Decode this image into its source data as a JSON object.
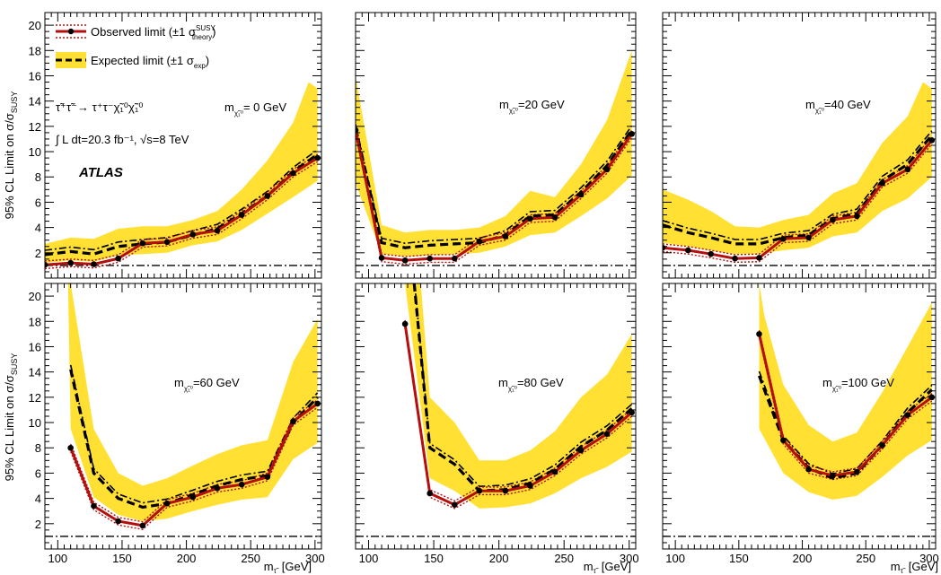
{
  "chart_data": {
    "type": "line",
    "ylabel": "95% CL Limit on σ/σ",
    "ylabel_sub": "SUSY",
    "xlabel": "m",
    "xlabel_unit": "[GeV]",
    "xlim": [
      90,
      305
    ],
    "ylim": [
      0,
      21
    ],
    "xticks": [
      "100",
      "150",
      "200",
      "250",
      "300"
    ],
    "yticks": [
      "2",
      "4",
      "6",
      "8",
      "10",
      "12",
      "14",
      "16",
      "18",
      "20"
    ],
    "reference_line": 1.0,
    "colors": {
      "band": "#FFE033",
      "observed": "#B40F0F",
      "expected": "#000000",
      "reference": "#000000"
    },
    "legend": {
      "observed": "Observed limit (±1 σ",
      "observed_sup": "SUSY",
      "observed_sub": "theory",
      "observed_end": ")",
      "expected": "Expected limit (±1 σ",
      "expected_sub": "exp",
      "expected_end": ")"
    },
    "annotations": {
      "process": "τ̃⁺τ̃⁻→ τ⁺τ⁻χ̃₁⁰χ̃₁⁰",
      "luminosity": "∫ L dt=20.3 fb⁻¹,  √s=8 TeV",
      "experiment": "ATLAS"
    },
    "panels": [
      {
        "label": "m",
        "label_value": "= 0 GeV",
        "observed": [
          [
            90,
            1.05
          ],
          [
            110,
            1.2
          ],
          [
            128,
            1.1
          ],
          [
            147,
            1.55
          ],
          [
            166,
            2.75
          ],
          [
            185,
            2.85
          ],
          [
            205,
            3.45
          ],
          [
            224,
            3.75
          ],
          [
            243,
            5.0
          ],
          [
            263,
            6.5
          ],
          [
            283,
            8.3
          ],
          [
            302,
            9.5
          ]
        ],
        "expected": [
          [
            90,
            1.85
          ],
          [
            110,
            2.1
          ],
          [
            128,
            1.9
          ],
          [
            147,
            2.5
          ],
          [
            166,
            2.7
          ],
          [
            185,
            2.85
          ],
          [
            205,
            3.4
          ],
          [
            224,
            3.9
          ],
          [
            243,
            5.1
          ],
          [
            263,
            6.5
          ],
          [
            283,
            8.4
          ],
          [
            302,
            9.8
          ]
        ],
        "band_upper": [
          [
            90,
            2.7
          ],
          [
            110,
            3.2
          ],
          [
            128,
            3.1
          ],
          [
            147,
            3.9
          ],
          [
            166,
            4.1
          ],
          [
            185,
            4.1
          ],
          [
            205,
            4.6
          ],
          [
            224,
            5.3
          ],
          [
            243,
            7.0
          ],
          [
            263,
            9.3
          ],
          [
            283,
            12.3
          ],
          [
            295,
            15.5
          ],
          [
            302,
            15.0
          ]
        ],
        "band_lower": [
          [
            90,
            1.2
          ],
          [
            110,
            1.4
          ],
          [
            128,
            1.3
          ],
          [
            147,
            1.8
          ],
          [
            166,
            1.9
          ],
          [
            185,
            2.0
          ],
          [
            205,
            2.6
          ],
          [
            224,
            2.9
          ],
          [
            243,
            3.8
          ],
          [
            263,
            5.1
          ],
          [
            283,
            6.4
          ],
          [
            302,
            7.7
          ]
        ]
      },
      {
        "label": "m",
        "label_value": "=20 GeV",
        "observed": [
          [
            90,
            11.7
          ],
          [
            110,
            1.6
          ],
          [
            128,
            1.4
          ],
          [
            147,
            1.55
          ],
          [
            166,
            1.55
          ],
          [
            185,
            2.9
          ],
          [
            205,
            3.3
          ],
          [
            224,
            4.7
          ],
          [
            243,
            4.8
          ],
          [
            263,
            6.6
          ],
          [
            283,
            8.6
          ],
          [
            302,
            11.4
          ]
        ],
        "expected": [
          [
            90,
            11.8
          ],
          [
            110,
            2.8
          ],
          [
            128,
            2.4
          ],
          [
            147,
            2.6
          ],
          [
            166,
            2.7
          ],
          [
            185,
            2.8
          ],
          [
            205,
            3.4
          ],
          [
            224,
            4.9
          ],
          [
            243,
            5.0
          ],
          [
            263,
            6.8
          ],
          [
            283,
            8.9
          ],
          [
            302,
            11.7
          ]
        ],
        "band_upper": [
          [
            90,
            16.0
          ],
          [
            110,
            4.2
          ],
          [
            128,
            3.6
          ],
          [
            147,
            3.8
          ],
          [
            166,
            3.8
          ],
          [
            185,
            4.0
          ],
          [
            205,
            4.9
          ],
          [
            224,
            6.9
          ],
          [
            243,
            6.4
          ],
          [
            263,
            9.0
          ],
          [
            283,
            12.5
          ],
          [
            302,
            18.0
          ]
        ],
        "band_lower": [
          [
            90,
            7.5
          ],
          [
            110,
            1.9
          ],
          [
            128,
            1.7
          ],
          [
            147,
            1.8
          ],
          [
            166,
            1.9
          ],
          [
            185,
            2.0
          ],
          [
            205,
            2.5
          ],
          [
            224,
            3.4
          ],
          [
            243,
            3.6
          ],
          [
            263,
            4.9
          ],
          [
            283,
            6.3
          ],
          [
            302,
            8.1
          ]
        ]
      },
      {
        "label": "m",
        "label_value": "=40 GeV",
        "observed": [
          [
            90,
            2.4
          ],
          [
            110,
            2.2
          ],
          [
            128,
            1.9
          ],
          [
            147,
            1.55
          ],
          [
            166,
            1.6
          ],
          [
            185,
            3.1
          ],
          [
            205,
            3.2
          ],
          [
            224,
            4.6
          ],
          [
            243,
            4.9
          ],
          [
            263,
            7.5
          ],
          [
            283,
            8.6
          ],
          [
            302,
            10.9
          ]
        ],
        "expected": [
          [
            90,
            4.2
          ],
          [
            110,
            3.6
          ],
          [
            128,
            3.2
          ],
          [
            147,
            2.7
          ],
          [
            166,
            2.7
          ],
          [
            185,
            3.2
          ],
          [
            205,
            3.4
          ],
          [
            224,
            4.7
          ],
          [
            243,
            5.1
          ],
          [
            263,
            7.7
          ],
          [
            283,
            9.0
          ],
          [
            302,
            11.3
          ]
        ],
        "band_upper": [
          [
            90,
            7.0
          ],
          [
            110,
            6.2
          ],
          [
            128,
            5.3
          ],
          [
            147,
            4.1
          ],
          [
            166,
            4.0
          ],
          [
            185,
            4.6
          ],
          [
            205,
            5.0
          ],
          [
            224,
            6.7
          ],
          [
            243,
            7.5
          ],
          [
            263,
            10.7
          ],
          [
            283,
            12.8
          ],
          [
            295,
            15.5
          ],
          [
            302,
            15.0
          ]
        ],
        "band_lower": [
          [
            90,
            2.8
          ],
          [
            110,
            2.5
          ],
          [
            128,
            2.2
          ],
          [
            147,
            1.9
          ],
          [
            166,
            1.9
          ],
          [
            185,
            2.2
          ],
          [
            205,
            2.4
          ],
          [
            224,
            3.3
          ],
          [
            243,
            3.6
          ],
          [
            263,
            5.3
          ],
          [
            283,
            6.3
          ],
          [
            302,
            8.0
          ]
        ]
      },
      {
        "label": "m",
        "label_value": "=60 GeV",
        "observed": [
          [
            110,
            8.0
          ],
          [
            128,
            3.4
          ],
          [
            147,
            2.2
          ],
          [
            166,
            1.85
          ],
          [
            185,
            3.6
          ],
          [
            205,
            4.1
          ],
          [
            224,
            4.8
          ],
          [
            243,
            5.1
          ],
          [
            263,
            5.7
          ],
          [
            283,
            10.1
          ],
          [
            302,
            11.5
          ]
        ],
        "expected": [
          [
            110,
            14.2
          ],
          [
            128,
            6.0
          ],
          [
            147,
            4.0
          ],
          [
            166,
            3.3
          ],
          [
            185,
            3.6
          ],
          [
            205,
            4.3
          ],
          [
            224,
            5.0
          ],
          [
            243,
            5.5
          ],
          [
            263,
            5.8
          ],
          [
            283,
            10.0
          ],
          [
            302,
            12.0
          ]
        ],
        "band_upper": [
          [
            108,
            21.0
          ],
          [
            110,
            21.0
          ],
          [
            128,
            9.5
          ],
          [
            147,
            6.0
          ],
          [
            166,
            5.0
          ],
          [
            185,
            5.6
          ],
          [
            205,
            6.6
          ],
          [
            224,
            7.5
          ],
          [
            243,
            8.2
          ],
          [
            263,
            8.6
          ],
          [
            283,
            14.8
          ],
          [
            302,
            18.2
          ]
        ],
        "band_lower": [
          [
            110,
            9.5
          ],
          [
            128,
            4.1
          ],
          [
            147,
            2.7
          ],
          [
            166,
            2.2
          ],
          [
            185,
            2.4
          ],
          [
            205,
            3.0
          ],
          [
            224,
            3.5
          ],
          [
            243,
            3.9
          ],
          [
            263,
            4.1
          ],
          [
            283,
            7.1
          ],
          [
            302,
            8.4
          ]
        ]
      },
      {
        "label": "m",
        "label_value": "=80 GeV",
        "observed": [
          [
            128,
            17.8
          ],
          [
            147,
            4.4
          ],
          [
            166,
            3.5
          ],
          [
            185,
            4.6
          ],
          [
            205,
            4.6
          ],
          [
            224,
            5.0
          ],
          [
            243,
            6.1
          ],
          [
            263,
            7.8
          ],
          [
            283,
            9.1
          ],
          [
            302,
            10.8
          ]
        ],
        "expected": [
          [
            135,
            21.0
          ],
          [
            147,
            8.0
          ],
          [
            166,
            6.7
          ],
          [
            185,
            4.6
          ],
          [
            205,
            4.7
          ],
          [
            224,
            5.2
          ],
          [
            243,
            6.3
          ],
          [
            263,
            8.1
          ],
          [
            283,
            9.4
          ],
          [
            302,
            11.1
          ]
        ],
        "band_upper": [
          [
            128,
            21.0
          ],
          [
            140,
            21.0
          ],
          [
            147,
            12.0
          ],
          [
            166,
            10.0
          ],
          [
            185,
            7.0
          ],
          [
            205,
            7.0
          ],
          [
            224,
            7.8
          ],
          [
            243,
            9.3
          ],
          [
            263,
            12.0
          ],
          [
            283,
            13.8
          ],
          [
            302,
            17.0
          ]
        ],
        "band_lower": [
          [
            128,
            21.0
          ],
          [
            147,
            5.6
          ],
          [
            166,
            4.6
          ],
          [
            185,
            3.2
          ],
          [
            205,
            3.3
          ],
          [
            224,
            3.6
          ],
          [
            243,
            4.4
          ],
          [
            263,
            5.6
          ],
          [
            283,
            6.5
          ],
          [
            302,
            7.7
          ]
        ]
      },
      {
        "label": "m",
        "label_value": "=100 GeV",
        "observed": [
          [
            166,
            17.0
          ],
          [
            185,
            8.6
          ],
          [
            205,
            6.3
          ],
          [
            224,
            5.8
          ],
          [
            243,
            6.1
          ],
          [
            263,
            8.2
          ],
          [
            283,
            10.6
          ],
          [
            302,
            12.0
          ]
        ],
        "expected": [
          [
            166,
            13.7
          ],
          [
            185,
            8.6
          ],
          [
            205,
            6.4
          ],
          [
            224,
            5.6
          ],
          [
            243,
            6.0
          ],
          [
            263,
            8.2
          ],
          [
            283,
            10.8
          ],
          [
            302,
            12.6
          ]
        ],
        "band_upper": [
          [
            166,
            21.0
          ],
          [
            170,
            18.5
          ],
          [
            185,
            13.0
          ],
          [
            205,
            9.8
          ],
          [
            224,
            8.5
          ],
          [
            243,
            9.2
          ],
          [
            263,
            12.4
          ],
          [
            283,
            16.0
          ],
          [
            302,
            19.5
          ]
        ],
        "band_lower": [
          [
            166,
            9.5
          ],
          [
            185,
            6.0
          ],
          [
            205,
            4.5
          ],
          [
            224,
            3.9
          ],
          [
            243,
            4.2
          ],
          [
            263,
            5.7
          ],
          [
            283,
            7.4
          ],
          [
            302,
            8.6
          ]
        ]
      }
    ]
  }
}
